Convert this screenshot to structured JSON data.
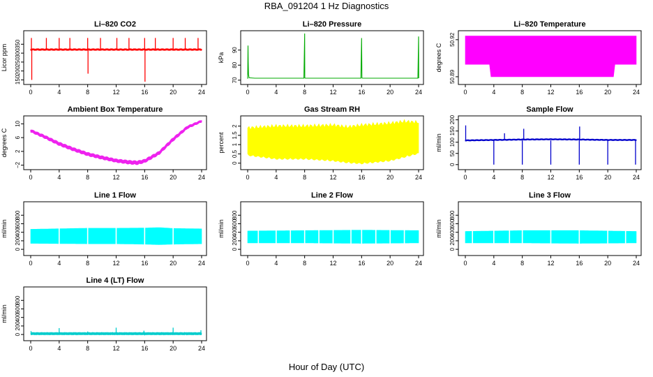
{
  "figure": {
    "title": "RBA_091204  1 Hz Diagnostics",
    "xlabel": "Hour of Day (UTC)"
  },
  "chart_data": [
    {
      "type": "line",
      "title": "Li–820 CO2",
      "ylabel": "Licor ppm",
      "color": "#ff0000",
      "xlim": [
        0,
        24
      ],
      "xticks": [
        0,
        4,
        8,
        12,
        16,
        20,
        24
      ],
      "ylim": [
        140,
        410
      ],
      "yticks": [
        150,
        200,
        250,
        300,
        350
      ],
      "band": {
        "x": [
          0,
          24
        ],
        "center": [
          320,
          320
        ],
        "amp": [
          6,
          6
        ]
      },
      "events": [
        {
          "x": 0.1,
          "y": 385
        },
        {
          "x": 0.15,
          "y": 150
        },
        {
          "x": 2.2,
          "y": 385
        },
        {
          "x": 4.0,
          "y": 385
        },
        {
          "x": 5.5,
          "y": 385
        },
        {
          "x": 8.0,
          "y": 385
        },
        {
          "x": 8.05,
          "y": 185
        },
        {
          "x": 9.8,
          "y": 385
        },
        {
          "x": 12.1,
          "y": 385
        },
        {
          "x": 13.8,
          "y": 385
        },
        {
          "x": 16.0,
          "y": 385
        },
        {
          "x": 16.05,
          "y": 140
        },
        {
          "x": 17.5,
          "y": 385
        },
        {
          "x": 20.0,
          "y": 385
        },
        {
          "x": 21.7,
          "y": 385
        },
        {
          "x": 23.5,
          "y": 385
        }
      ]
    },
    {
      "type": "line",
      "title": "Li–820 Pressure",
      "ylabel": "kPa",
      "color": "#00aa00",
      "xlim": [
        0,
        24
      ],
      "xticks": [
        0,
        4,
        8,
        12,
        16,
        20,
        24
      ],
      "ylim": [
        69,
        101
      ],
      "yticks": [
        70,
        80,
        90
      ],
      "series": [
        {
          "x": [
            0,
            0.05,
            0.08,
            0.12,
            0.2,
            1,
            4,
            7.9,
            8.0,
            8.02,
            8.1,
            12,
            15.9,
            16.0,
            16.05,
            16.1,
            20,
            23.9,
            24.0,
            24.02
          ],
          "y": [
            71,
            93,
            82,
            74,
            71.6,
            71.3,
            71.3,
            71.3,
            101,
            71.5,
            71.3,
            71.3,
            71.3,
            98,
            71.5,
            71.3,
            71.3,
            71.3,
            99,
            71.3
          ]
        }
      ]
    },
    {
      "type": "area",
      "title": "Li–820 Temperature",
      "ylabel": "degrees C",
      "color": "#ff00ff",
      "xlim": [
        0,
        24
      ],
      "xticks": [
        0,
        4,
        8,
        12,
        16,
        20,
        24
      ],
      "ylim": [
        50.886,
        50.925
      ],
      "yticks": [
        50.89,
        50.92
      ],
      "band": {
        "x": [
          0,
          3.5,
          3.6,
          20.9,
          21.0,
          24
        ],
        "low": [
          50.9,
          50.9,
          50.89,
          50.89,
          50.9,
          50.9
        ],
        "high": [
          50.923,
          50.923,
          50.923,
          50.923,
          50.923,
          50.923
        ]
      }
    },
    {
      "type": "line",
      "title": "Ambient Box Temperature",
      "ylabel": "degrees C",
      "color": "#ee22ee",
      "xlim": [
        0,
        24
      ],
      "xticks": [
        0,
        4,
        8,
        12,
        16,
        20,
        24
      ],
      "ylim": [
        -2.5,
        11.5
      ],
      "yticks": [
        -2,
        2,
        6,
        10
      ],
      "band": {
        "x": [
          0,
          2,
          4,
          6,
          8,
          10,
          12,
          14,
          15,
          16,
          18,
          20,
          22,
          24
        ],
        "center": [
          8,
          6.2,
          4.2,
          2.6,
          1.2,
          0.2,
          -0.7,
          -1.2,
          -1.3,
          -0.8,
          1.5,
          5.5,
          9,
          10.8
        ],
        "amp": [
          0.5,
          0.55,
          0.6,
          0.6,
          0.6,
          0.6,
          0.6,
          0.65,
          0.65,
          0.6,
          0.6,
          0.6,
          0.5,
          0.4
        ]
      }
    },
    {
      "type": "area",
      "title": "Gas Stream RH",
      "ylabel": "percent",
      "color": "#ffff00",
      "xlim": [
        0,
        24
      ],
      "xticks": [
        0,
        4,
        8,
        12,
        16,
        20,
        24
      ],
      "ylim": [
        -0.2,
        2.4
      ],
      "yticks": [
        0.0,
        0.5,
        1.0,
        1.5,
        2.0
      ],
      "band": {
        "x": [
          0,
          4,
          8,
          12,
          14,
          16,
          20,
          22,
          24
        ],
        "low": [
          0.5,
          0.3,
          0.3,
          0.2,
          0.1,
          0.05,
          0.2,
          0.4,
          0.6
        ],
        "high": [
          1.9,
          2.0,
          2.0,
          2.05,
          1.95,
          2.05,
          2.15,
          2.25,
          2.2
        ]
      }
    },
    {
      "type": "line",
      "title": "Sample Flow",
      "ylabel": "ml/min",
      "color": "#0000cc",
      "xlim": [
        0,
        24
      ],
      "xticks": [
        0,
        4,
        8,
        12,
        16,
        20,
        24
      ],
      "ylim": [
        -10,
        205
      ],
      "yticks": [
        0,
        50,
        100,
        150,
        200
      ],
      "band": {
        "x": [
          0,
          4,
          8,
          12,
          16,
          20,
          24
        ],
        "center": [
          108,
          110,
          112,
          113,
          112,
          110,
          110
        ],
        "amp": [
          4,
          4,
          4,
          4,
          4,
          4,
          4
        ]
      },
      "events": [
        {
          "x": 0.05,
          "y": 175
        },
        {
          "x": 4.0,
          "y": 0
        },
        {
          "x": 5.5,
          "y": 140
        },
        {
          "x": 8.0,
          "y": 0
        },
        {
          "x": 8.2,
          "y": 160
        },
        {
          "x": 12.0,
          "y": 0
        },
        {
          "x": 16.0,
          "y": 0
        },
        {
          "x": 16.05,
          "y": 170
        },
        {
          "x": 20.0,
          "y": 0
        },
        {
          "x": 23.9,
          "y": 0
        }
      ]
    },
    {
      "type": "area",
      "title": "Line 1 Flow",
      "ylabel": "ml/min",
      "color": "#00ffff",
      "xlim": [
        0,
        24
      ],
      "xticks": [
        0,
        4,
        8,
        12,
        16,
        20,
        24
      ],
      "ylim": [
        -80,
        1050
      ],
      "yticks": [
        0,
        200,
        400,
        600,
        800
      ],
      "band": {
        "x": [
          0,
          8,
          12,
          16,
          18,
          20,
          24
        ],
        "low": [
          140,
          130,
          130,
          120,
          110,
          120,
          130
        ],
        "high": [
          470,
          495,
          495,
          500,
          510,
          490,
          480
        ]
      },
      "gaps": [
        4.0,
        8.0,
        12.0,
        16.0,
        20.0
      ]
    },
    {
      "type": "area",
      "title": "Line 2 Flow",
      "ylabel": "ml/min",
      "color": "#00ffff",
      "xlim": [
        0,
        24
      ],
      "xticks": [
        0,
        4,
        8,
        12,
        16,
        20,
        24
      ],
      "ylim": [
        -80,
        1050
      ],
      "yticks": [
        0,
        200,
        400,
        600,
        800
      ],
      "band": {
        "x": [
          0,
          8,
          16,
          24
        ],
        "low": [
          150,
          150,
          140,
          150
        ],
        "high": [
          430,
          440,
          450,
          440
        ]
      },
      "gaps": [
        1.5,
        4.0,
        6.0,
        8.0,
        10.0,
        12.0,
        14.5,
        16.0,
        18.0,
        20.0,
        22.0
      ]
    },
    {
      "type": "area",
      "title": "Line 3 Flow",
      "ylabel": "ml/min",
      "color": "#00ffff",
      "xlim": [
        0,
        24
      ],
      "xticks": [
        0,
        4,
        8,
        12,
        16,
        20,
        24
      ],
      "ylim": [
        -80,
        1050
      ],
      "yticks": [
        0,
        200,
        400,
        600,
        800
      ],
      "band": {
        "x": [
          0,
          8,
          16,
          24
        ],
        "low": [
          150,
          150,
          140,
          150
        ],
        "high": [
          420,
          440,
          440,
          420
        ]
      },
      "gaps": [
        1.0,
        4.0,
        6.2,
        8.0,
        12.0,
        16.0,
        20.0,
        22.5
      ]
    },
    {
      "type": "line",
      "title": "Line 4 (LT) Flow",
      "ylabel": "ml/min",
      "color": "#00cccc",
      "xlim": [
        0,
        24
      ],
      "xticks": [
        0,
        4,
        8,
        12,
        16,
        20,
        24
      ],
      "ylim": [
        -80,
        1050
      ],
      "yticks": [
        0,
        200,
        400,
        600,
        800
      ],
      "band": {
        "x": [
          0,
          24
        ],
        "center": [
          20,
          20
        ],
        "amp": [
          8,
          8
        ]
      },
      "events": [
        {
          "x": 0.05,
          "y": 80
        },
        {
          "x": 4.0,
          "y": 150
        },
        {
          "x": 8.0,
          "y": 70
        },
        {
          "x": 12.0,
          "y": 160
        },
        {
          "x": 15.9,
          "y": 90
        },
        {
          "x": 16.0,
          "y": -20
        },
        {
          "x": 20.0,
          "y": 160
        },
        {
          "x": 23.9,
          "y": 100
        }
      ]
    }
  ]
}
